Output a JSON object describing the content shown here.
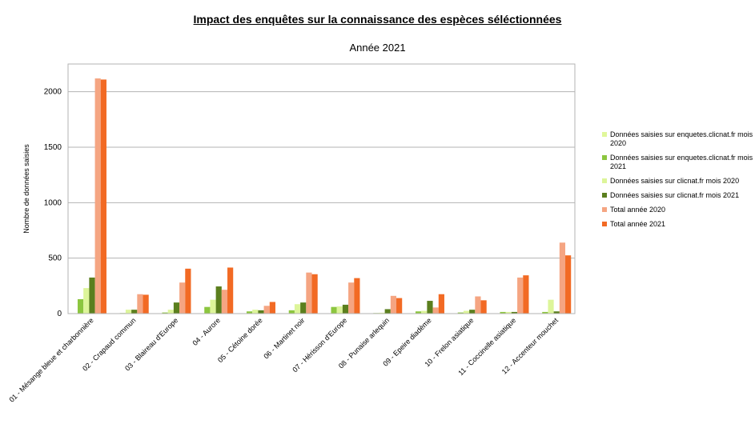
{
  "chart_data": {
    "type": "bar",
    "title": "Impact des enquêtes sur la connaissance des espèces séléctionnées",
    "subtitle": "Année 2021",
    "xlabel": "",
    "ylabel": "Nombre de données saisies",
    "ylim": [
      0,
      2250
    ],
    "yticks": [
      "0",
      "500",
      "1000",
      "1500",
      "2000"
    ],
    "grid": true,
    "legend_position": "right",
    "categories": [
      "01 - Mésange bleue et charbonnière",
      "02 - Crapaud commun",
      "03 - Blaireau d'Europe",
      "04 - Aurore",
      "05 - Cétoine dorée",
      "06 - Martinet noir",
      "07 - Hérisson d'Europe",
      "08 - Punaise arlequin",
      "09 - Epeire diadème",
      "10 - Frelon asiatique",
      "11 - Coccinelle asiatique",
      "12 - Accenteur mouchet"
    ],
    "series": [
      {
        "name": "Données saisies sur enquetes.clicnat.fr mois 2020",
        "color": "#e0f79a",
        "values": [
          0,
          0,
          0,
          0,
          0,
          0,
          0,
          0,
          0,
          0,
          0,
          0
        ]
      },
      {
        "name": "Données saisies sur enquetes.clicnat.fr mois 2021",
        "color": "#8cc63f",
        "values": [
          130,
          5,
          10,
          60,
          20,
          30,
          60,
          5,
          20,
          10,
          15,
          15
        ]
      },
      {
        "name": "Données saisies sur clicnat.fr mois 2020",
        "color": "#ddf59a",
        "values": [
          230,
          35,
          35,
          125,
          35,
          85,
          65,
          8,
          25,
          25,
          15,
          125
        ]
      },
      {
        "name": "Données saisies sur clicnat.fr mois 2021",
        "color": "#5b7f1e",
        "values": [
          325,
          35,
          100,
          245,
          30,
          100,
          80,
          40,
          115,
          35,
          15,
          20
        ]
      },
      {
        "name": "Total année 2020",
        "color": "#f5a582",
        "values": [
          2120,
          175,
          280,
          215,
          70,
          370,
          280,
          160,
          55,
          155,
          325,
          640
        ]
      },
      {
        "name": "Total année 2021",
        "color": "#f26a24",
        "values": [
          2110,
          170,
          405,
          415,
          105,
          355,
          320,
          140,
          175,
          120,
          345,
          525
        ]
      }
    ]
  }
}
